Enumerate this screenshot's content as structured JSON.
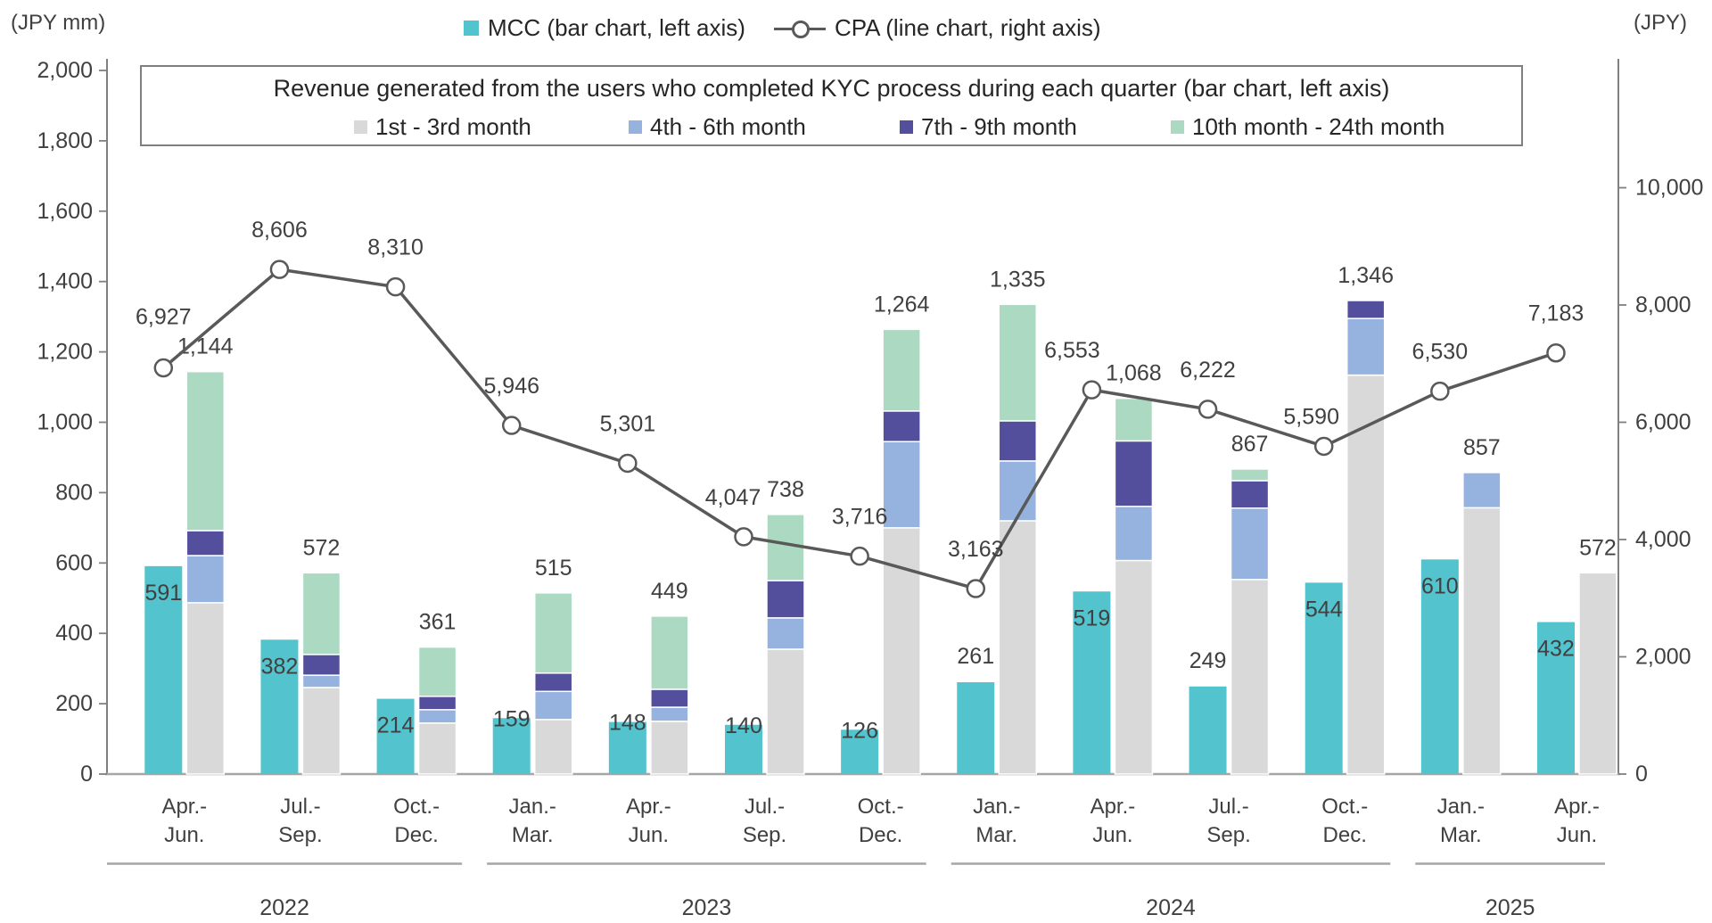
{
  "page": {
    "left_axis_unit": "(JPY mm)",
    "right_axis_unit": "(JPY)"
  },
  "legend_top": {
    "mcc_label": "MCC (bar chart, left axis)",
    "cpa_label": "CPA (line chart, right axis)"
  },
  "legend_box": {
    "title": "Revenue generated from the users who completed KYC process during each quarter (bar chart, left axis)",
    "items": [
      {
        "label": "1st - 3rd month",
        "key": "m1_3",
        "color": "#d9d9d9"
      },
      {
        "label": "4th - 6th month",
        "key": "m4_6",
        "color": "#95b3de"
      },
      {
        "label": "7th - 9th month",
        "key": "m7_9",
        "color": "#534f9c"
      },
      {
        "label": "10th month - 24th month",
        "key": "m10_24",
        "color": "#abd9c2"
      }
    ]
  },
  "colors": {
    "mcc_bar": "#53c3ce",
    "segment_1_3": "#d9d9d9",
    "segment_4_6": "#95b3de",
    "segment_7_9": "#534f9c",
    "segment_10_24": "#abd9c2",
    "cpa_line": "#595959",
    "axis": "#808080",
    "baseline": "#a6a6a6",
    "text": "#404040"
  },
  "chart_data": {
    "type": "bar-line-combo",
    "title": "Revenue generated from the users who completed KYC process during each quarter (bar chart, left axis)",
    "left_axis": {
      "unit": "(JPY mm)",
      "min": 0,
      "max": 2000,
      "tick_step": 200
    },
    "right_axis": {
      "unit": "(JPY)",
      "min": 0,
      "max": 12000,
      "tick_step": 2000,
      "max_labeled_tick": 10000
    },
    "grid": "off",
    "legend_position": "top",
    "series_info": {
      "mcc": "MCC (bar chart, left axis)",
      "cpa": "CPA (line chart, right axis)",
      "stack_order_bottom_to_top": [
        "m1_3",
        "m4_6",
        "m7_9",
        "m10_24"
      ]
    },
    "quarters": [
      {
        "year": "2022",
        "months": [
          "Apr.-",
          "Jun."
        ],
        "mcc": 591,
        "mcc_label_pos": "in",
        "cpa": 6927,
        "cpa_label_dx": 0,
        "cpa_label_dy": -58,
        "revenue": {
          "m1_3": 487,
          "m4_6": 134,
          "m7_9": 71,
          "m10_24": 452
        },
        "revenue_total": 1144
      },
      {
        "year": "2022",
        "months": [
          "Jul.-",
          "Sep."
        ],
        "mcc": 382,
        "mcc_label_pos": "in",
        "cpa": 8606,
        "cpa_label_dx": 0,
        "cpa_label_dy": -45,
        "revenue": {
          "m1_3": 246,
          "m4_6": 35,
          "m7_9": 59,
          "m10_24": 232
        },
        "revenue_total": 572
      },
      {
        "year": "2022",
        "months": [
          "Oct.-",
          "Dec."
        ],
        "mcc": 214,
        "mcc_label_pos": "in",
        "cpa": 8310,
        "cpa_label_dx": 0,
        "cpa_label_dy": -45,
        "revenue": {
          "m1_3": 145,
          "m4_6": 38,
          "m7_9": 38,
          "m10_24": 140
        },
        "revenue_total": 361
      },
      {
        "year": "2023",
        "months": [
          "Jan.-",
          "Mar."
        ],
        "mcc": 159,
        "mcc_label_pos": "top",
        "cpa": 5946,
        "cpa_label_dx": 0,
        "cpa_label_dy": -45,
        "revenue": {
          "m1_3": 155,
          "m4_6": 80,
          "m7_9": 52,
          "m10_24": 228
        },
        "revenue_total": 515
      },
      {
        "year": "2023",
        "months": [
          "Apr.-",
          "Jun."
        ],
        "mcc": 148,
        "mcc_label_pos": "top",
        "cpa": 5301,
        "cpa_label_dx": 0,
        "cpa_label_dy": -45,
        "revenue": {
          "m1_3": 150,
          "m4_6": 40,
          "m7_9": 51,
          "m10_24": 208
        },
        "revenue_total": 449
      },
      {
        "year": "2023",
        "months": [
          "Jul.-",
          "Sep."
        ],
        "mcc": 140,
        "mcc_label_pos": "top",
        "cpa": 4047,
        "cpa_label_dx": -12,
        "cpa_label_dy": -45,
        "revenue": {
          "m1_3": 355,
          "m4_6": 89,
          "m7_9": 106,
          "m10_24": 188
        },
        "revenue_total": 738
      },
      {
        "year": "2023",
        "months": [
          "Oct.-",
          "Dec."
        ],
        "mcc": 126,
        "mcc_label_pos": "top",
        "cpa": 3716,
        "cpa_label_dx": 0,
        "cpa_label_dy": -45,
        "revenue": {
          "m1_3": 700,
          "m4_6": 245,
          "m7_9": 87,
          "m10_24": 232
        },
        "revenue_total": 1264
      },
      {
        "year": "2024",
        "months": [
          "Jan.-",
          "Mar."
        ],
        "mcc": 261,
        "mcc_label_pos": "above",
        "cpa": 3163,
        "cpa_label_dx": 0,
        "cpa_label_dy": -45,
        "revenue": {
          "m1_3": 720,
          "m4_6": 170,
          "m7_9": 114,
          "m10_24": 331
        },
        "revenue_total": 1335
      },
      {
        "year": "2024",
        "months": [
          "Apr.-",
          "Jun."
        ],
        "mcc": 519,
        "mcc_label_pos": "in",
        "cpa": 6553,
        "cpa_label_dx": -22,
        "cpa_label_dy": -45,
        "revenue": {
          "m1_3": 607,
          "m4_6": 154,
          "m7_9": 186,
          "m10_24": 121
        },
        "revenue_total": 1068
      },
      {
        "year": "2024",
        "months": [
          "Jul.-",
          "Sep."
        ],
        "mcc": 249,
        "mcc_label_pos": "above",
        "cpa": 6222,
        "cpa_label_dx": 0,
        "cpa_label_dy": -45,
        "revenue": {
          "m1_3": 553,
          "m4_6": 203,
          "m7_9": 78,
          "m10_24": 33
        },
        "revenue_total": 867
      },
      {
        "year": "2024",
        "months": [
          "Oct.-",
          "Dec."
        ],
        "mcc": 544,
        "mcc_label_pos": "in",
        "cpa": 5590,
        "cpa_label_dx": -14,
        "cpa_label_dy": -34,
        "revenue": {
          "m1_3": 1134,
          "m4_6": 161,
          "m7_9": 51,
          "m10_24": 0
        },
        "revenue_total": 1346
      },
      {
        "year": "2025",
        "months": [
          "Jan.-",
          "Mar."
        ],
        "mcc": 610,
        "mcc_label_pos": "in",
        "cpa": 6530,
        "cpa_label_dx": 0,
        "cpa_label_dy": -45,
        "revenue": {
          "m1_3": 757,
          "m4_6": 100,
          "m7_9": 0,
          "m10_24": 0
        },
        "revenue_total": 857
      },
      {
        "year": "2025",
        "months": [
          "Apr.-",
          "Jun."
        ],
        "mcc": 432,
        "mcc_label_pos": "in",
        "cpa": 7183,
        "cpa_label_dx": 0,
        "cpa_label_dy": -45,
        "revenue": {
          "m1_3": 572,
          "m4_6": 0,
          "m7_9": 0,
          "m10_24": 0
        },
        "revenue_total": 572
      }
    ],
    "year_groups": [
      {
        "label": "2022",
        "from": 0,
        "to": 2
      },
      {
        "label": "2023",
        "from": 3,
        "to": 6
      },
      {
        "label": "2024",
        "from": 7,
        "to": 10
      },
      {
        "label": "2025",
        "from": 11,
        "to": 12
      }
    ]
  }
}
